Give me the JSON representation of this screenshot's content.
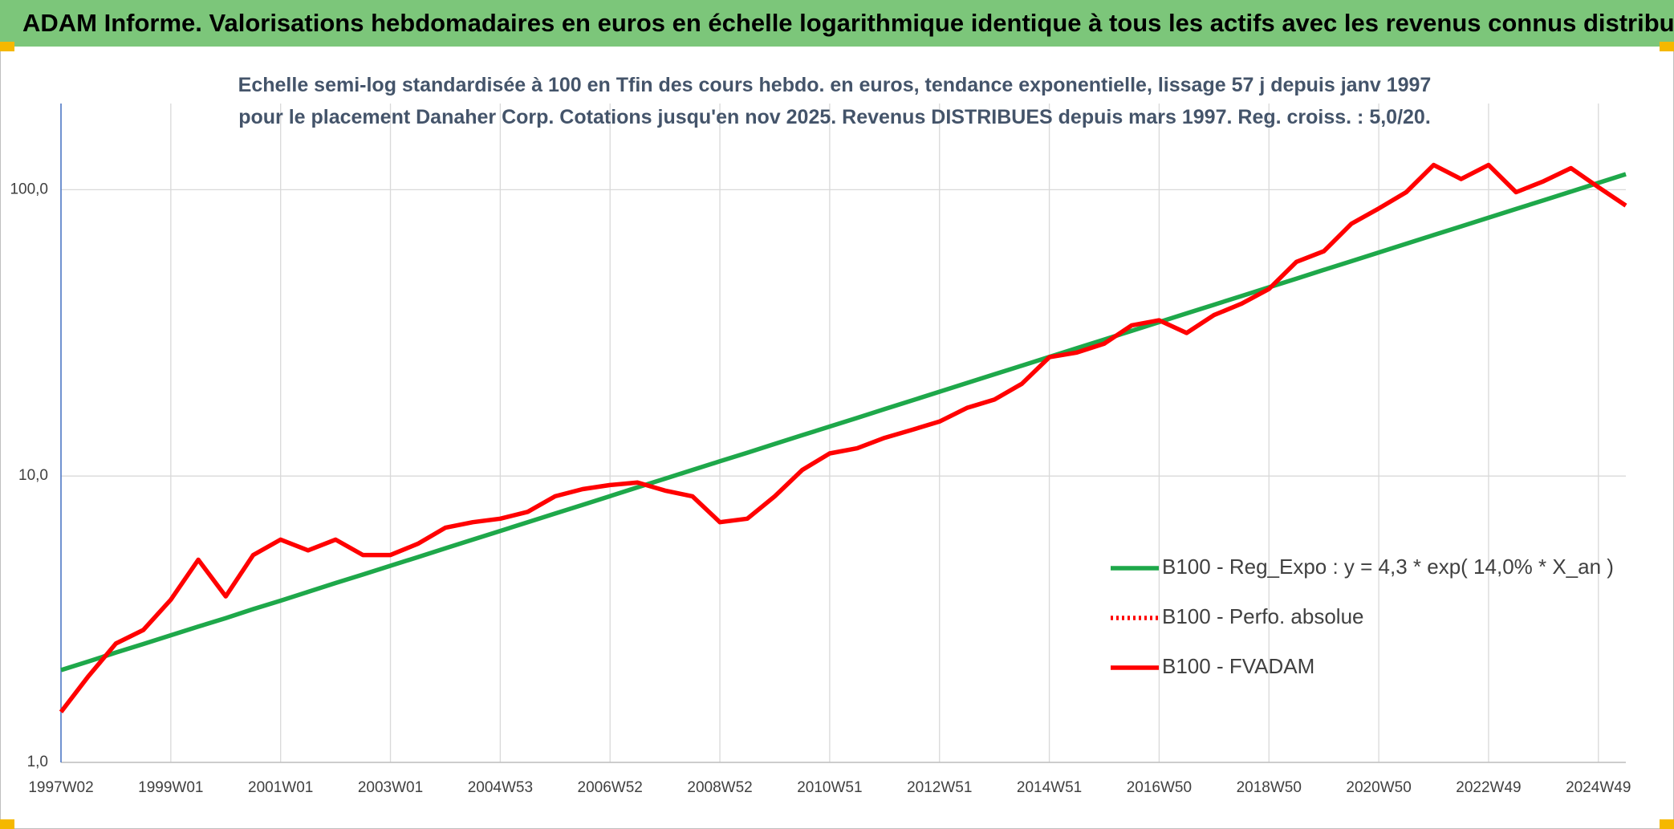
{
  "header": {
    "title": "ADAM Informe. Valorisations hebdomadaires en euros en échelle logarithmique identique à tous les actifs avec les revenus connus distribués"
  },
  "chart_data": {
    "type": "line",
    "title": "Echelle semi-log standardisée à 100 en Tfin des cours hebdo. en euros, tendance exponentielle, lissage 57 j depuis janv 1997 pour le placement Danaher Corp. Cotations jusqu'en nov 2025. Revenus DISTRIBUES depuis mars 1997. Reg. croiss. : 5,0/20.",
    "categories": [
      "1997W02",
      null,
      null,
      null,
      "1999W01",
      null,
      null,
      null,
      "2001W01",
      null,
      null,
      null,
      "2003W01",
      null,
      null,
      null,
      "2004W53",
      null,
      null,
      null,
      "2006W52",
      null,
      null,
      null,
      "2008W52",
      null,
      null,
      null,
      "2010W51",
      null,
      null,
      null,
      "2012W51",
      null,
      null,
      null,
      "2014W51",
      null,
      null,
      null,
      "2016W50",
      null,
      null,
      null,
      "2018W50",
      null,
      null,
      null,
      "2020W50",
      null,
      null,
      null,
      "2022W49",
      null,
      null,
      null,
      "2024W49",
      null
    ],
    "yscale": "log",
    "ylim": [
      1,
      200
    ],
    "yticks": [
      {
        "value": 1,
        "label": "1,0"
      },
      {
        "value": 10,
        "label": "10,0"
      },
      {
        "value": 100,
        "label": "100,0"
      }
    ],
    "grid": true,
    "legend": "lower-right",
    "series": [
      {
        "name": "B100 - Reg_Expo : y = 4,3 * exp( 14,0% *  X_an )",
        "color": "#1ea84a",
        "style": "solid",
        "values": [
          2.1,
          2.25,
          2.42,
          2.59,
          2.78,
          2.98,
          3.19,
          3.43,
          3.67,
          3.94,
          4.23,
          4.53,
          4.86,
          5.21,
          5.59,
          6.0,
          6.43,
          6.9,
          7.4,
          7.93,
          8.51,
          9.13,
          9.79,
          10.5,
          11.26,
          12.07,
          12.95,
          13.89,
          14.89,
          15.97,
          17.13,
          18.37,
          19.7,
          21.13,
          22.66,
          24.31,
          26.07,
          27.96,
          29.98,
          32.16,
          34.49,
          36.99,
          39.67,
          42.54,
          45.63,
          48.93,
          52.48,
          56.28,
          60.36,
          64.74,
          69.43,
          74.46,
          79.86,
          85.65,
          91.86,
          98.51,
          105.65,
          113.31
        ]
      },
      {
        "name": "B100 - Perfo. absolue",
        "color": "#ff0000",
        "style": "dotted"
      },
      {
        "name": "B100 - FVADAM",
        "color": "#ff0000",
        "style": "solid",
        "values": [
          1.5,
          2.0,
          2.6,
          2.9,
          3.7,
          5.1,
          3.8,
          5.3,
          6.0,
          5.5,
          6.0,
          5.3,
          5.3,
          5.8,
          6.6,
          6.9,
          7.1,
          7.5,
          8.5,
          9.0,
          9.3,
          9.5,
          8.9,
          8.5,
          6.9,
          7.1,
          8.5,
          10.5,
          12.0,
          12.5,
          13.6,
          14.5,
          15.5,
          17.3,
          18.5,
          21,
          26,
          27,
          29,
          33.6,
          35,
          31.6,
          36.5,
          40,
          45,
          56,
          61,
          76,
          86,
          98,
          122,
          109,
          122,
          98,
          107,
          119,
          102,
          88
        ]
      }
    ]
  }
}
